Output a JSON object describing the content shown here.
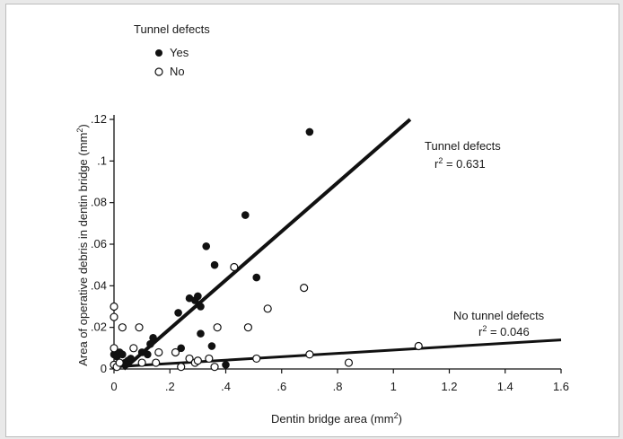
{
  "chart_data": {
    "type": "scatter",
    "title": "",
    "xlabel": "Dentin bridge area (mm²)",
    "xlabel_base": "Dentin bridge area (mm",
    "xlabel_sup": "2",
    "xlabel_tail": ")",
    "ylabel": "Area of operative debris in dentin bridge (mm²)",
    "ylabel_base": "Area of operative debris in dentin bridge (mm",
    "ylabel_sup": "2",
    "ylabel_tail": ")",
    "xlim": [
      0,
      1.6
    ],
    "ylim": [
      0,
      0.12
    ],
    "x_ticks": [
      0,
      0.2,
      0.4,
      0.6,
      0.8,
      1.0,
      1.2,
      1.4,
      1.6
    ],
    "x_tick_labels": [
      "0",
      ".2",
      ".4",
      ".6",
      ".8",
      "1",
      "1.2",
      "1.4",
      "1.6"
    ],
    "y_ticks": [
      0,
      0.02,
      0.04,
      0.06,
      0.08,
      0.1,
      0.12
    ],
    "y_tick_labels": [
      "0",
      ".02",
      ".04",
      ".06",
      ".08",
      ".1",
      ".12"
    ],
    "grid": false,
    "legend": {
      "title": "Tunnel defects",
      "placement": "top-left",
      "entries": [
        {
          "label": "Yes",
          "marker": "filled-circle"
        },
        {
          "label": "No",
          "marker": "open-circle"
        }
      ]
    },
    "series": [
      {
        "name": "Yes",
        "marker": "filled-circle",
        "points": [
          [
            0.0,
            0.007
          ],
          [
            0.01,
            0.006
          ],
          [
            0.02,
            0.008
          ],
          [
            0.03,
            0.007
          ],
          [
            0.04,
            0.003
          ],
          [
            0.05,
            0.004
          ],
          [
            0.06,
            0.005
          ],
          [
            0.1,
            0.008
          ],
          [
            0.13,
            0.012
          ],
          [
            0.14,
            0.015
          ],
          [
            0.12,
            0.007
          ],
          [
            0.23,
            0.027
          ],
          [
            0.24,
            0.01
          ],
          [
            0.27,
            0.034
          ],
          [
            0.29,
            0.033
          ],
          [
            0.3,
            0.035
          ],
          [
            0.31,
            0.017
          ],
          [
            0.31,
            0.03
          ],
          [
            0.33,
            0.059
          ],
          [
            0.35,
            0.011
          ],
          [
            0.36,
            0.05
          ],
          [
            0.4,
            0.002
          ],
          [
            0.47,
            0.074
          ],
          [
            0.51,
            0.044
          ],
          [
            0.7,
            0.114
          ]
        ]
      },
      {
        "name": "No",
        "marker": "open-circle",
        "points": [
          [
            0.0,
            0.03
          ],
          [
            0.0,
            0.025
          ],
          [
            0.0,
            0.01
          ],
          [
            0.0,
            0.002
          ],
          [
            0.01,
            0.001
          ],
          [
            0.02,
            0.003
          ],
          [
            0.03,
            0.02
          ],
          [
            0.07,
            0.01
          ],
          [
            0.09,
            0.02
          ],
          [
            0.1,
            0.003
          ],
          [
            0.15,
            0.003
          ],
          [
            0.16,
            0.008
          ],
          [
            0.22,
            0.008
          ],
          [
            0.24,
            0.001
          ],
          [
            0.27,
            0.005
          ],
          [
            0.29,
            0.003
          ],
          [
            0.3,
            0.004
          ],
          [
            0.34,
            0.005
          ],
          [
            0.36,
            0.001
          ],
          [
            0.37,
            0.02
          ],
          [
            0.43,
            0.049
          ],
          [
            0.48,
            0.02
          ],
          [
            0.51,
            0.005
          ],
          [
            0.55,
            0.029
          ],
          [
            0.68,
            0.039
          ],
          [
            0.7,
            0.007
          ],
          [
            0.84,
            0.003
          ],
          [
            1.09,
            0.011
          ]
        ]
      }
    ],
    "fit_lines": [
      {
        "name": "Tunnel defects",
        "from": [
          0.035,
          0.0
        ],
        "to": [
          1.06,
          0.12
        ]
      },
      {
        "name": "No tunnel defects",
        "from": [
          0.0,
          0.001
        ],
        "to": [
          1.6,
          0.014
        ]
      }
    ],
    "annotations": [
      {
        "id": "tunnel",
        "label": "Tunnel defects",
        "r2_base": "r",
        "r2_sup": "2",
        "r2_value": " = 0.631"
      },
      {
        "id": "no-tunnel",
        "label": "No tunnel defects",
        "r2_base": "r",
        "r2_sup": "2",
        "r2_value": " = 0.046"
      }
    ]
  }
}
